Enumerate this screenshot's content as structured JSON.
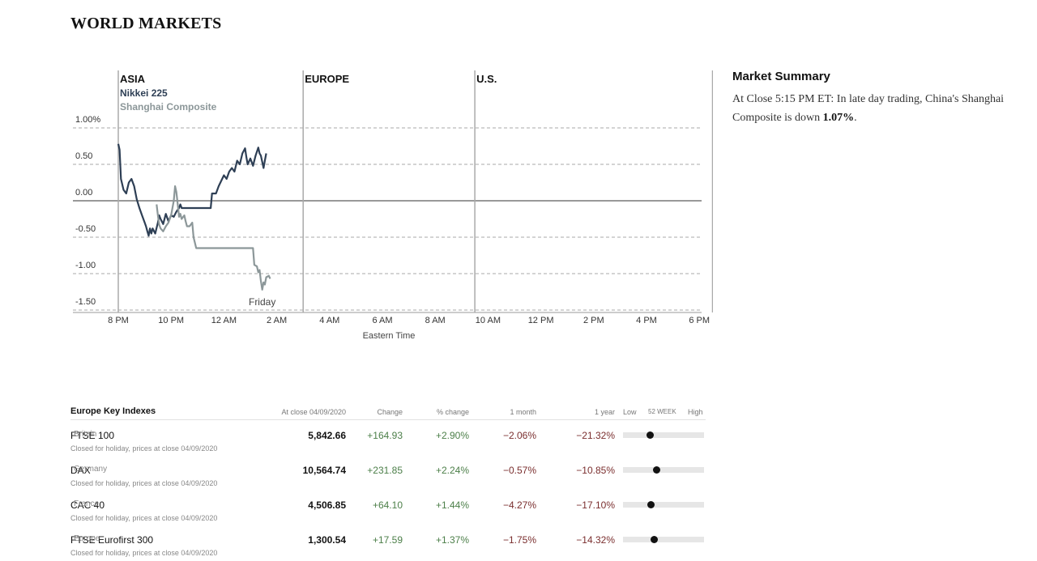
{
  "page_title": "WORLD MARKETS",
  "chart_data": {
    "type": "line",
    "regions": [
      "ASIA",
      "EUROPE",
      "U.S."
    ],
    "series": [
      {
        "name": "Nikkei 225",
        "color": "#2e3f55",
        "points": [
          [
            0,
            0.78
          ],
          [
            0.05,
            0.7
          ],
          [
            0.1,
            0.3
          ],
          [
            0.2,
            0.15
          ],
          [
            0.3,
            0.1
          ],
          [
            0.4,
            0.25
          ],
          [
            0.5,
            0.3
          ],
          [
            0.6,
            0.2
          ],
          [
            0.7,
            0.02
          ],
          [
            0.8,
            -0.1
          ],
          [
            0.9,
            -0.2
          ],
          [
            1.0,
            -0.3
          ],
          [
            1.05,
            -0.35
          ],
          [
            1.1,
            -0.42
          ],
          [
            1.15,
            -0.48
          ],
          [
            1.2,
            -0.38
          ],
          [
            1.25,
            -0.45
          ],
          [
            1.3,
            -0.38
          ],
          [
            1.4,
            -0.45
          ],
          [
            1.5,
            -0.3
          ],
          [
            1.55,
            -0.2
          ],
          [
            1.6,
            -0.25
          ],
          [
            1.7,
            -0.32
          ],
          [
            1.8,
            -0.18
          ],
          [
            1.9,
            -0.28
          ],
          [
            2.0,
            -0.2
          ],
          [
            2.1,
            -0.22
          ],
          [
            2.2,
            -0.15
          ],
          [
            2.3,
            -0.1
          ],
          [
            2.35,
            -0.05
          ],
          [
            2.4,
            -0.1
          ],
          [
            2.5,
            -0.1
          ],
          [
            2.7,
            -0.1
          ],
          [
            3.0,
            -0.1
          ],
          [
            3.5,
            -0.1
          ],
          [
            3.55,
            0.1
          ],
          [
            3.7,
            0.1
          ],
          [
            3.8,
            0.2
          ],
          [
            4.0,
            0.35
          ],
          [
            4.1,
            0.3
          ],
          [
            4.2,
            0.4
          ],
          [
            4.3,
            0.45
          ],
          [
            4.4,
            0.4
          ],
          [
            4.5,
            0.55
          ],
          [
            4.6,
            0.5
          ],
          [
            4.7,
            0.65
          ],
          [
            4.8,
            0.72
          ],
          [
            4.85,
            0.6
          ],
          [
            4.9,
            0.5
          ],
          [
            5.0,
            0.58
          ],
          [
            5.1,
            0.48
          ],
          [
            5.2,
            0.62
          ],
          [
            5.3,
            0.73
          ],
          [
            5.35,
            0.65
          ],
          [
            5.4,
            0.62
          ],
          [
            5.5,
            0.45
          ],
          [
            5.55,
            0.55
          ],
          [
            5.6,
            0.65
          ]
        ]
      },
      {
        "name": "Shanghai Composite",
        "color": "#8c9799",
        "points": [
          [
            1.45,
            -0.05
          ],
          [
            1.5,
            -0.2
          ],
          [
            1.55,
            -0.33
          ],
          [
            1.6,
            -0.38
          ],
          [
            1.7,
            -0.42
          ],
          [
            1.8,
            -0.35
          ],
          [
            1.9,
            -0.3
          ],
          [
            2.0,
            -0.2
          ],
          [
            2.1,
            0.0
          ],
          [
            2.15,
            0.2
          ],
          [
            2.2,
            0.12
          ],
          [
            2.25,
            -0.05
          ],
          [
            2.3,
            -0.22
          ],
          [
            2.35,
            -0.18
          ],
          [
            2.4,
            -0.25
          ],
          [
            2.5,
            -0.2
          ],
          [
            2.55,
            -0.28
          ],
          [
            2.6,
            -0.35
          ],
          [
            2.7,
            -0.35
          ],
          [
            2.8,
            -0.3
          ],
          [
            2.85,
            -0.5
          ],
          [
            2.95,
            -0.65
          ],
          [
            3.0,
            -0.65
          ],
          [
            3.5,
            -0.65
          ],
          [
            4.0,
            -0.65
          ],
          [
            5.0,
            -0.65
          ],
          [
            5.1,
            -0.65
          ],
          [
            5.15,
            -0.88
          ],
          [
            5.25,
            -0.9
          ],
          [
            5.3,
            -0.98
          ],
          [
            5.35,
            -0.95
          ],
          [
            5.4,
            -1.1
          ],
          [
            5.45,
            -1.22
          ],
          [
            5.5,
            -1.12
          ],
          [
            5.55,
            -1.15
          ],
          [
            5.6,
            -1.05
          ],
          [
            5.7,
            -1.03
          ],
          [
            5.75,
            -1.07
          ]
        ]
      }
    ],
    "y_ticks": [
      "1.00%",
      "0.50",
      "0.00",
      "-0.50",
      "-1.00",
      "-1.50"
    ],
    "y_tick_values": [
      1.0,
      0.5,
      0.0,
      -0.5,
      -1.0,
      -1.5
    ],
    "ylim": [
      -1.5,
      1.0
    ],
    "x_ticks": [
      "8 PM",
      "10 PM",
      "12 AM",
      "2 AM",
      "4 AM",
      "6 AM",
      "8 AM",
      "10 AM",
      "12 PM",
      "2 PM",
      "4 PM",
      "6 PM"
    ],
    "x_tick_hours": [
      0,
      2,
      4,
      6,
      8,
      10,
      12,
      14,
      16,
      18,
      20,
      22
    ],
    "region_start_hours": [
      0,
      7,
      13.5,
      22.5
    ],
    "xlabel": "Eastern Time",
    "annotation": "Friday",
    "grid": true
  },
  "summary": {
    "title": "Market Summary",
    "prefix": "At Close 5:15 PM ET:  In late day trading, China's Shanghai Composite is down ",
    "highlight": "1.07%",
    "suffix": "."
  },
  "indexes": {
    "title": "Europe Key Indexes",
    "col_close": "At close 04/09/2020",
    "col_change": "Change",
    "col_pct": "% change",
    "col_month": "1 month",
    "col_year": "1 year",
    "col_low": "Low",
    "col_week": "52 WEEK",
    "col_high": "High",
    "rows": [
      {
        "name": "FTSE 100",
        "country": "Britain",
        "note": "Closed for holiday, prices at close 04/09/2020",
        "close": "5,842.66",
        "change": "+164.93",
        "pct": "+2.90%",
        "month": "−2.06%",
        "year": "−21.32%",
        "range_pos": 0.33
      },
      {
        "name": "DAX",
        "country": "Germany",
        "note": "Closed for holiday, prices at close 04/09/2020",
        "close": "10,564.74",
        "change": "+231.85",
        "pct": "+2.24%",
        "month": "−0.57%",
        "year": "−10.85%",
        "range_pos": 0.41
      },
      {
        "name": "CAC 40",
        "country": "France",
        "note": "Closed for holiday, prices at close 04/09/2020",
        "close": "4,506.85",
        "change": "+64.10",
        "pct": "+1.44%",
        "month": "−4.27%",
        "year": "−17.10%",
        "range_pos": 0.34
      },
      {
        "name": "FTSE Eurofirst 300",
        "country": "Europe",
        "note": "Closed for holiday, prices at close 04/09/2020",
        "close": "1,300.54",
        "change": "+17.59",
        "pct": "+1.37%",
        "month": "−1.75%",
        "year": "−14.32%",
        "range_pos": 0.38
      }
    ]
  }
}
